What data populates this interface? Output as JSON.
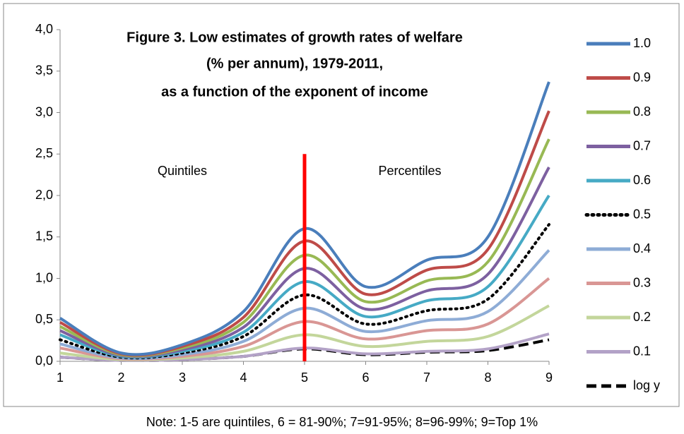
{
  "chart_data": {
    "type": "line",
    "title": [
      "Figure 3. Low estimates of growth rates of welfare",
      "(% per annum), 1979-2011,",
      "as a function  of the exponent of income"
    ],
    "annotations": [
      "Quintiles",
      "Percentiles"
    ],
    "divider": {
      "x": 5,
      "top": 2.5,
      "color": "#ff0000"
    },
    "note": "Note: 1-5 are quintiles, 6 = 81-90%; 7=91-95%; 8=96-99%; 9=Top 1%",
    "x": [
      1,
      2,
      3,
      4,
      5,
      6,
      7,
      8,
      9
    ],
    "xlim": [
      1,
      9
    ],
    "xticks": [
      1,
      2,
      3,
      4,
      5,
      6,
      7,
      8,
      9
    ],
    "ylim": [
      0,
      4
    ],
    "yticks": [
      {
        "value": 0,
        "label": "0,0"
      },
      {
        "value": 0.5,
        "label": "0,5"
      },
      {
        "value": 1,
        "label": "1,0"
      },
      {
        "value": 1.5,
        "label": "1,5"
      },
      {
        "value": 2,
        "label": "2,0"
      },
      {
        "value": 2.5,
        "label": "2,5"
      },
      {
        "value": 3,
        "label": "3,0"
      },
      {
        "value": 3.5,
        "label": "3,5"
      },
      {
        "value": 4,
        "label": "4,0"
      }
    ],
    "grid": false,
    "legend": "right",
    "series": [
      {
        "name": "1.0",
        "color": "#4a7ebb",
        "style": "solid",
        "values": [
          0.52,
          0.1,
          0.2,
          0.6,
          1.6,
          0.9,
          1.22,
          1.5,
          3.37
        ]
      },
      {
        "name": "0.9",
        "color": "#be4b48",
        "style": "solid",
        "values": [
          0.47,
          0.09,
          0.18,
          0.53,
          1.45,
          0.81,
          1.1,
          1.35,
          3.02
        ]
      },
      {
        "name": "0.8",
        "color": "#98b954",
        "style": "solid",
        "values": [
          0.42,
          0.08,
          0.16,
          0.47,
          1.28,
          0.72,
          0.97,
          1.2,
          2.68
        ]
      },
      {
        "name": "0.7",
        "color": "#7d60a0",
        "style": "solid",
        "values": [
          0.37,
          0.07,
          0.14,
          0.41,
          1.12,
          0.63,
          0.85,
          1.05,
          2.34
        ]
      },
      {
        "name": "0.6",
        "color": "#46aac5",
        "style": "solid",
        "values": [
          0.32,
          0.06,
          0.12,
          0.35,
          0.96,
          0.54,
          0.73,
          0.9,
          2.0
        ]
      },
      {
        "name": "0.5",
        "color": "#000000",
        "style": "dotted",
        "values": [
          0.26,
          0.05,
          0.1,
          0.3,
          0.8,
          0.45,
          0.61,
          0.75,
          1.65
        ]
      },
      {
        "name": "0.4",
        "color": "#8eacd6",
        "style": "solid",
        "values": [
          0.21,
          0.04,
          0.08,
          0.24,
          0.64,
          0.36,
          0.49,
          0.6,
          1.34
        ]
      },
      {
        "name": "0.3",
        "color": "#d99694",
        "style": "solid",
        "values": [
          0.16,
          0.03,
          0.06,
          0.18,
          0.48,
          0.27,
          0.37,
          0.45,
          1.0
        ]
      },
      {
        "name": "0.2",
        "color": "#c3d69b",
        "style": "solid",
        "values": [
          0.1,
          0.02,
          0.04,
          0.12,
          0.32,
          0.18,
          0.24,
          0.3,
          0.67
        ]
      },
      {
        "name": "0.1",
        "color": "#b3a2c7",
        "style": "solid",
        "values": [
          0.05,
          0.01,
          0.02,
          0.06,
          0.16,
          0.09,
          0.12,
          0.15,
          0.33
        ]
      },
      {
        "name": "log y",
        "color": "#000000",
        "style": "dashed",
        "values": [
          0.05,
          0.01,
          0.02,
          0.06,
          0.15,
          0.08,
          0.11,
          0.13,
          0.26
        ]
      }
    ]
  }
}
